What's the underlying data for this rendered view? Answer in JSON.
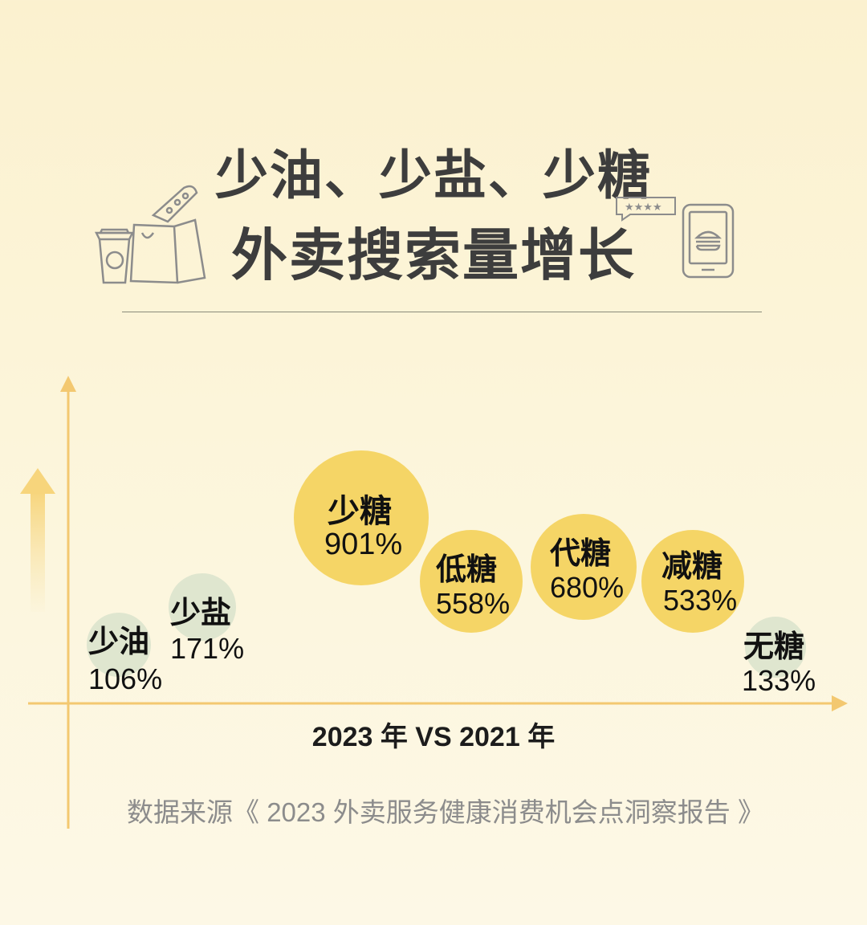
{
  "header": {
    "title_line1": "少油、少盐、少糖",
    "title_line2": "外卖搜索量增长"
  },
  "icons": [
    "coffee-cup-icon",
    "shopping-bag-icon",
    "snack-icon",
    "rating-stars-icon",
    "phone-burger-icon",
    "up-arrow-icon"
  ],
  "chart_data": {
    "type": "bubble",
    "categories": [
      "少油",
      "少盐",
      "少糖",
      "低糖",
      "代糖",
      "减糖",
      "无糖"
    ],
    "values": [
      106,
      171,
      901,
      558,
      680,
      533,
      133
    ],
    "value_labels": [
      "106%",
      "171%",
      "901%",
      "558%",
      "680%",
      "533%",
      "133%"
    ],
    "unit": "%",
    "xlabel": "2023 年 VS 2021 年",
    "colors": {
      "high": "#f5d566",
      "low": "#dfe6cf",
      "axis": "#f3c870"
    }
  },
  "footer": {
    "source": "数据来源《 2023 外卖服务健康消费机会点洞察报告 》"
  }
}
